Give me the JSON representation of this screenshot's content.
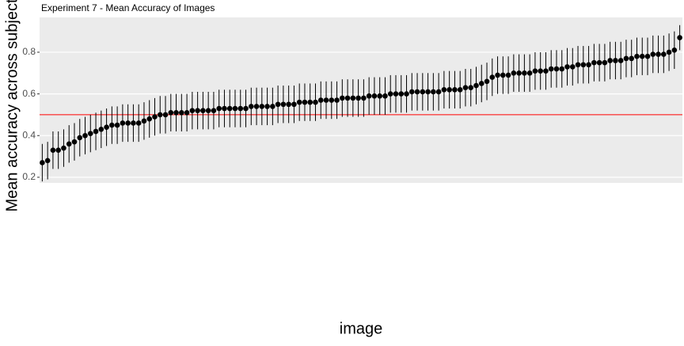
{
  "chart_data": {
    "type": "pointrange",
    "title": "Experiment 7 - Mean Accuracy of Images",
    "x_label": "image",
    "y_label": "Mean accuracy across subjects",
    "categories": [
      null,
      null,
      null,
      null,
      null,
      null,
      null,
      null,
      null,
      null,
      null,
      null,
      null,
      null,
      null,
      null,
      null,
      null,
      null,
      null,
      null,
      null,
      null,
      null,
      null,
      null,
      null,
      null,
      null,
      null,
      null,
      null,
      null,
      null,
      null,
      null,
      null,
      null,
      null,
      null,
      null,
      null,
      null,
      null,
      null,
      null,
      null,
      null,
      null,
      null,
      null,
      null,
      null,
      null,
      null,
      null,
      null,
      null,
      null,
      null,
      null,
      null,
      null,
      null,
      null,
      null,
      null,
      null,
      null,
      null,
      null,
      null,
      null,
      null,
      null,
      null,
      null,
      null,
      null,
      null,
      null,
      null,
      null,
      null,
      null,
      null,
      null,
      null,
      null,
      null,
      null,
      null,
      null,
      null,
      null,
      null,
      null,
      null,
      null,
      null,
      null,
      null,
      null,
      null,
      null,
      null,
      null,
      null,
      null,
      null,
      null,
      null,
      null,
      null,
      null,
      null,
      null,
      null,
      null,
      null
    ],
    "values": [
      0.27,
      0.28,
      0.33,
      0.33,
      0.34,
      0.36,
      0.37,
      0.39,
      0.4,
      0.41,
      0.42,
      0.43,
      0.44,
      0.45,
      0.45,
      0.46,
      0.46,
      0.46,
      0.46,
      0.47,
      0.48,
      0.49,
      0.5,
      0.5,
      0.51,
      0.51,
      0.51,
      0.51,
      0.52,
      0.52,
      0.52,
      0.52,
      0.52,
      0.53,
      0.53,
      0.53,
      0.53,
      0.53,
      0.53,
      0.54,
      0.54,
      0.54,
      0.54,
      0.54,
      0.55,
      0.55,
      0.55,
      0.55,
      0.56,
      0.56,
      0.56,
      0.56,
      0.57,
      0.57,
      0.57,
      0.57,
      0.58,
      0.58,
      0.58,
      0.58,
      0.58,
      0.59,
      0.59,
      0.59,
      0.59,
      0.6,
      0.6,
      0.6,
      0.6,
      0.61,
      0.61,
      0.61,
      0.61,
      0.61,
      0.61,
      0.62,
      0.62,
      0.62,
      0.62,
      0.63,
      0.63,
      0.64,
      0.65,
      0.66,
      0.68,
      0.69,
      0.69,
      0.69,
      0.7,
      0.7,
      0.7,
      0.7,
      0.71,
      0.71,
      0.71,
      0.72,
      0.72,
      0.72,
      0.73,
      0.73,
      0.74,
      0.74,
      0.74,
      0.75,
      0.75,
      0.75,
      0.76,
      0.76,
      0.76,
      0.77,
      0.77,
      0.78,
      0.78,
      0.78,
      0.79,
      0.79,
      0.79,
      0.8,
      0.81,
      0.87
    ],
    "errors": [
      0.09,
      0.09,
      0.09,
      0.09,
      0.09,
      0.09,
      0.09,
      0.09,
      0.09,
      0.09,
      0.09,
      0.09,
      0.09,
      0.09,
      0.09,
      0.09,
      0.09,
      0.09,
      0.09,
      0.09,
      0.09,
      0.09,
      0.09,
      0.09,
      0.09,
      0.09,
      0.09,
      0.09,
      0.09,
      0.09,
      0.09,
      0.09,
      0.09,
      0.09,
      0.09,
      0.09,
      0.09,
      0.09,
      0.09,
      0.09,
      0.09,
      0.09,
      0.09,
      0.09,
      0.09,
      0.09,
      0.09,
      0.09,
      0.09,
      0.09,
      0.09,
      0.09,
      0.09,
      0.09,
      0.09,
      0.09,
      0.09,
      0.09,
      0.09,
      0.09,
      0.09,
      0.09,
      0.09,
      0.09,
      0.09,
      0.09,
      0.09,
      0.09,
      0.09,
      0.09,
      0.09,
      0.09,
      0.09,
      0.09,
      0.09,
      0.09,
      0.09,
      0.09,
      0.09,
      0.09,
      0.09,
      0.09,
      0.09,
      0.09,
      0.09,
      0.09,
      0.09,
      0.09,
      0.09,
      0.09,
      0.09,
      0.09,
      0.09,
      0.09,
      0.09,
      0.09,
      0.09,
      0.09,
      0.09,
      0.09,
      0.09,
      0.09,
      0.09,
      0.09,
      0.09,
      0.09,
      0.09,
      0.09,
      0.09,
      0.09,
      0.09,
      0.09,
      0.09,
      0.09,
      0.09,
      0.09,
      0.09,
      0.09,
      0.09,
      0.06
    ],
    "color": "#000000",
    "hline": 0.5,
    "hline_color": "#ff0000",
    "ylim": [
      0.173,
      0.967
    ],
    "yticks": [
      0.2,
      0.4,
      0.6,
      0.8
    ],
    "grid": true
  }
}
